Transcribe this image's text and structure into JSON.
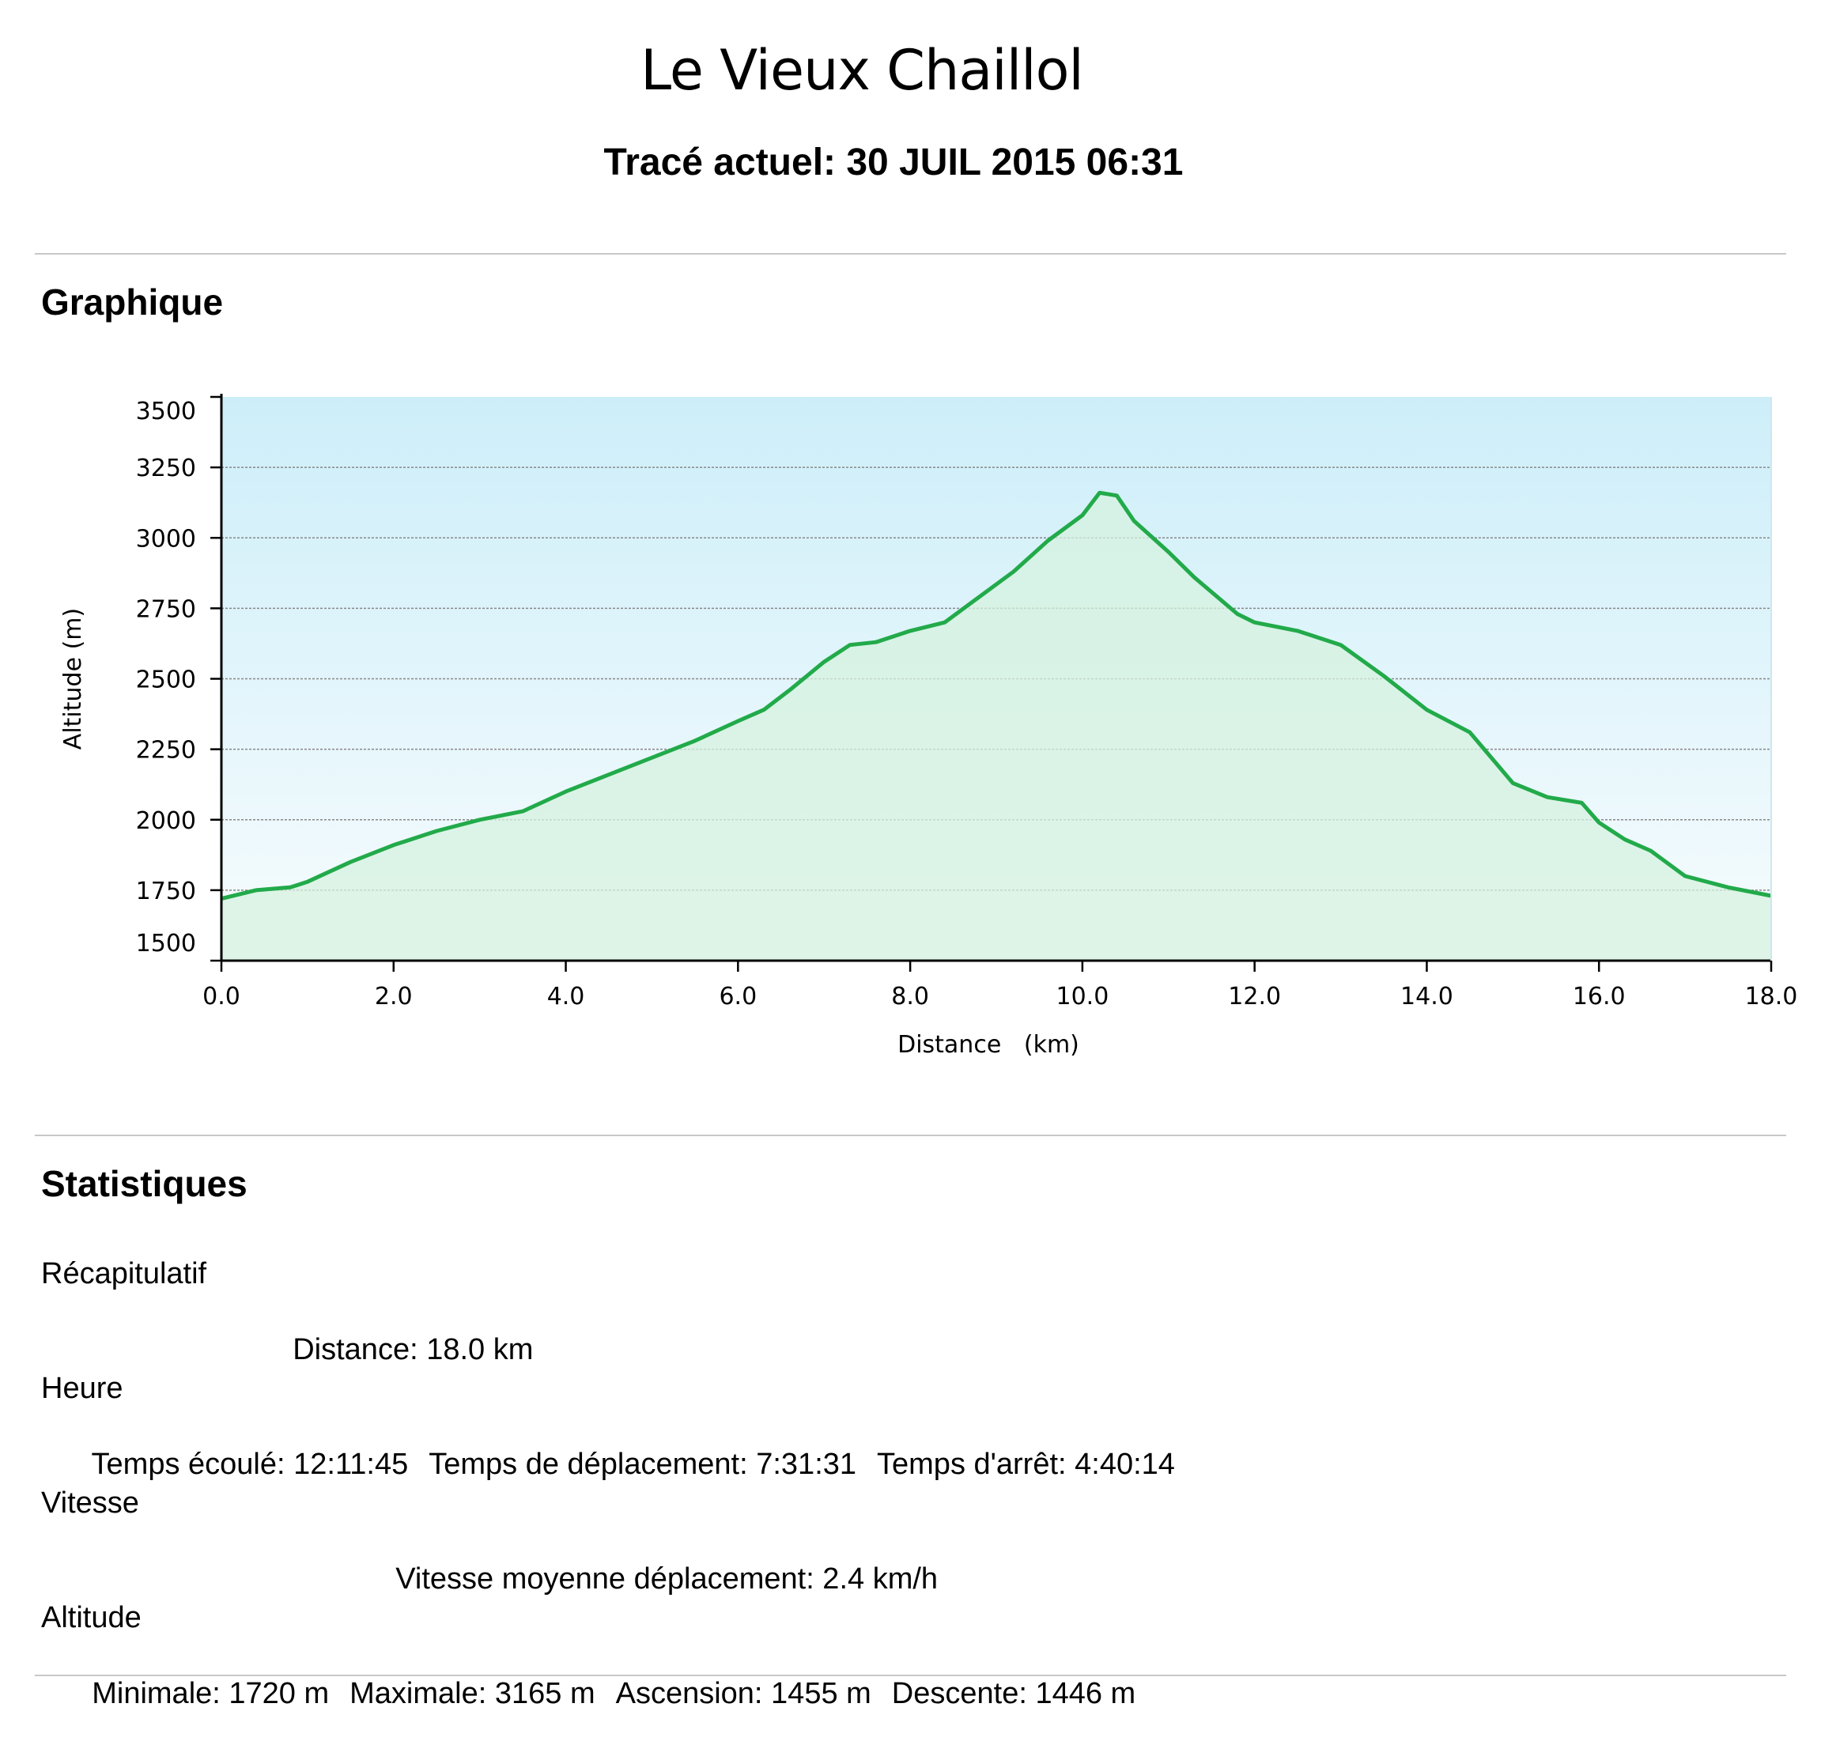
{
  "title": "Le Vieux Chaillol",
  "track": "Tracé actuel: 30 JUIL 2015 06:31",
  "sections": {
    "graph": "Graphique",
    "stats": "Statistiques"
  },
  "colors": {
    "line": "#22aa4a",
    "fill_top": "#cdeef9",
    "fill_bottom": "#f7fcfe",
    "area": "#d6f2df",
    "grid": "#888888"
  },
  "chart_data": {
    "type": "area",
    "title": "",
    "xlabel": "Distance   (km)",
    "ylabel": "Altitude (m)",
    "xlim": [
      0,
      18
    ],
    "ylim": [
      1500,
      3500
    ],
    "x_ticks": [
      "0.0",
      "2.0",
      "4.0",
      "6.0",
      "8.0",
      "10.0",
      "12.0",
      "14.0",
      "16.0",
      "18.0"
    ],
    "y_ticks": [
      "3500",
      "3250",
      "3000",
      "2750",
      "2500",
      "2250",
      "2000",
      "1750",
      "1500"
    ],
    "y_tick_values": [
      3500,
      3250,
      3000,
      2750,
      2500,
      2250,
      2000,
      1750,
      1500
    ],
    "grid": true,
    "legend": "none",
    "x": [
      0,
      0.4,
      0.8,
      1.0,
      1.5,
      2.0,
      2.5,
      3.0,
      3.5,
      4.0,
      4.5,
      5.0,
      5.5,
      6.0,
      6.3,
      6.6,
      7.0,
      7.3,
      7.6,
      8.0,
      8.4,
      8.8,
      9.2,
      9.6,
      10.0,
      10.2,
      10.4,
      10.6,
      11.0,
      11.3,
      11.8,
      12.0,
      12.5,
      13.0,
      13.5,
      14.0,
      14.5,
      15.0,
      15.4,
      15.8,
      16.0,
      16.3,
      16.6,
      17.0,
      17.5,
      18.0
    ],
    "y": [
      1720,
      1750,
      1760,
      1780,
      1850,
      1910,
      1960,
      2000,
      2030,
      2100,
      2160,
      2220,
      2280,
      2350,
      2390,
      2460,
      2560,
      2620,
      2630,
      2670,
      2700,
      2790,
      2880,
      2990,
      3080,
      3160,
      3150,
      3060,
      2950,
      2860,
      2730,
      2700,
      2670,
      2620,
      2510,
      2390,
      2310,
      2130,
      2080,
      2060,
      1990,
      1930,
      1890,
      1800,
      1760,
      1730
    ]
  },
  "stats": {
    "summary": {
      "label": "Récapitulatif",
      "distance": "Distance: 18.0 km"
    },
    "time": {
      "label": "Heure",
      "elapsed": "Temps écoulé: 12:11:45",
      "moving": "Temps de déplacement: 7:31:31",
      "stopped": "Temps d'arrêt: 4:40:14"
    },
    "speed": {
      "label": "Vitesse",
      "avg_moving": "Vitesse moyenne déplacement: 2.4 km/h"
    },
    "altitude": {
      "label": "Altitude",
      "min": "Minimale: 1720 m",
      "max": "Maximale: 3165 m",
      "ascent": "Ascension: 1455 m",
      "descent": "Descente: 1446 m"
    }
  }
}
